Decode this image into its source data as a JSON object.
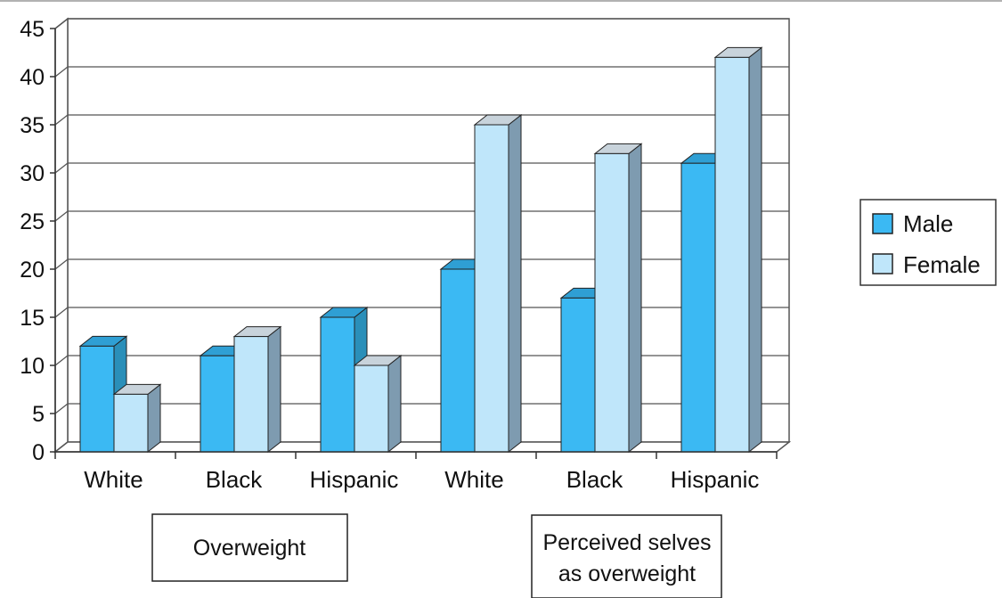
{
  "chart_data": {
    "type": "bar",
    "style": "3d-clustered",
    "categories": [
      "White",
      "Black",
      "Hispanic",
      "White",
      "Black",
      "Hispanic"
    ],
    "groups": [
      {
        "label": "Overweight",
        "categories": [
          0,
          1,
          2
        ]
      },
      {
        "label": "Perceived selves as overweight",
        "lines": [
          "Perceived selves",
          "as overweight"
        ],
        "categories": [
          3,
          4,
          5
        ]
      }
    ],
    "series": [
      {
        "name": "Male",
        "values": [
          12,
          11,
          15,
          20,
          17,
          31
        ],
        "color": "#3bb9f3",
        "side_color": "#2a8fb9",
        "top_color": "#2f9fd4"
      },
      {
        "name": "Female",
        "values": [
          7,
          13,
          10,
          35,
          32,
          42
        ],
        "color": "#bfe6fa",
        "side_color": "#7e9bb0",
        "top_color": "#c8d3db"
      }
    ],
    "yticks": [
      0,
      5,
      10,
      15,
      20,
      25,
      30,
      35,
      40,
      45
    ],
    "ylim": [
      0,
      45
    ],
    "grid": true,
    "legend": {
      "position": "right"
    }
  }
}
